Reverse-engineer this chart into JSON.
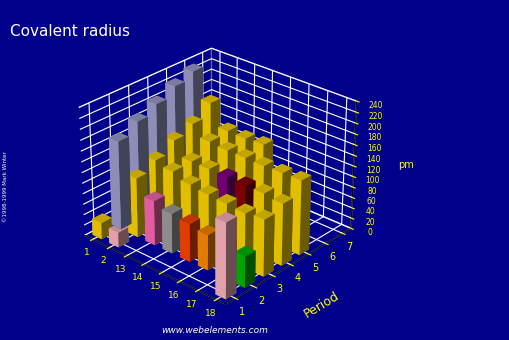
{
  "title": "Covalent radius",
  "background_color": "#00008B",
  "floor_color": "#606060",
  "title_color": "#FFFFFF",
  "axis_label_color": "#FFFF00",
  "tick_label_color": "#FFFF00",
  "groups": [
    1,
    2,
    13,
    14,
    15,
    16,
    17,
    18
  ],
  "periods": [
    1,
    2,
    3,
    4,
    5,
    6,
    7
  ],
  "zlim": [
    0,
    240
  ],
  "zticks": [
    0,
    20,
    40,
    60,
    80,
    100,
    120,
    140,
    160,
    180,
    200,
    220,
    240
  ],
  "covalent_radii": {
    "1_1": 31,
    "1_2": 167,
    "1_3": 187,
    "1_4": 203,
    "1_5": 220,
    "1_6": 232,
    "1_7": 0,
    "2_1": 28,
    "2_2": 112,
    "2_3": 128,
    "2_4": 148,
    "2_5": 162,
    "2_6": 185,
    "2_7": 0,
    "13_1": 0,
    "13_2": 84,
    "13_3": 121,
    "13_4": 122,
    "13_5": 142,
    "13_6": 145,
    "13_7": 0,
    "14_1": 0,
    "14_2": 75,
    "14_3": 111,
    "14_4": 122,
    "14_5": 139,
    "14_6": 144,
    "14_7": 0,
    "15_1": 0,
    "15_2": 71,
    "15_3": 107,
    "15_4": 120,
    "15_5": 139,
    "15_6": 146,
    "15_7": 0,
    "16_1": 0,
    "16_2": 66,
    "16_3": 105,
    "16_4": 119,
    "16_5": 138,
    "16_6": 0,
    "16_7": 0,
    "17_1": 0,
    "17_2": 64,
    "17_3": 102,
    "17_4": 120,
    "17_5": 139,
    "17_6": 0,
    "17_7": 0,
    "18_1": 140,
    "18_2": 58,
    "18_3": 106,
    "18_4": 116,
    "18_5": 140,
    "18_6": 0,
    "18_7": 0
  },
  "bar_colors": {
    "1_1": "#FFD700",
    "1_2": "#A0A0D0",
    "1_3": "#A0A0D0",
    "1_4": "#A0A0D0",
    "1_5": "#A0A0D0",
    "1_6": "#A0A0D0",
    "2_1": "#FFB6C1",
    "2_2": "#FFD700",
    "2_3": "#FFD700",
    "2_4": "#FFD700",
    "2_5": "#FFD700",
    "2_6": "#FFD700",
    "13_2": "#FF69B4",
    "13_3": "#FFD700",
    "13_4": "#FFD700",
    "13_5": "#FFD700",
    "13_6": "#FFD700",
    "14_2": "#A0A0A0",
    "14_3": "#FFD700",
    "14_4": "#FFD700",
    "14_5": "#FFD700",
    "14_6": "#FFD700",
    "15_2": "#FF4500",
    "15_3": "#FFD700",
    "15_4": "#800080",
    "15_5": "#FFD700",
    "15_6": "#FFD700",
    "16_2": "#FF8C00",
    "16_3": "#FFD700",
    "16_4": "#8B0000",
    "16_5": "#FFD700",
    "17_2": "#0000CD",
    "17_3": "#FFD700",
    "17_4": "#FFD700",
    "17_5": "#FFD700",
    "18_1": "#FFB6C1",
    "18_2": "#00BB00",
    "18_3": "#FFD700",
    "18_4": "#FFD700",
    "18_5": "#FFD700"
  },
  "elev": 28,
  "azim": -48,
  "figsize": [
    5.1,
    3.4
  ],
  "dpi": 100
}
